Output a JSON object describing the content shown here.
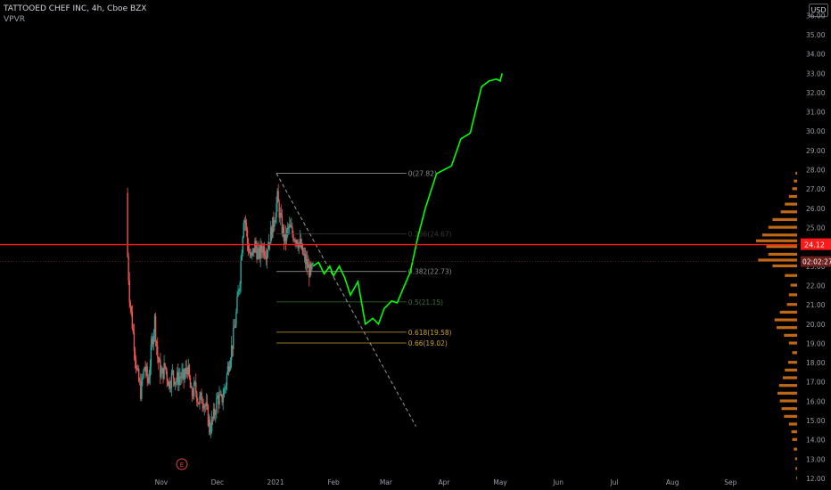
{
  "header": {
    "title": "TATTOOED CHEF INC, 4h, Cboe BZX",
    "indicator": "VPVR",
    "currency_button": "USD"
  },
  "colors": {
    "background": "#000000",
    "candle_up": "#26a69a",
    "candle_down": "#ef5350",
    "projection": "#00ff00",
    "price_line": "#ff1a1a",
    "volume_profile": "#e07b17",
    "fib_line": "#8c8c8c",
    "fib_618": "#c9a227",
    "fib_5": "#3c6e3c"
  },
  "chart_data": {
    "type": "candlestick",
    "symbol": "TATTOOED CHEF INC",
    "interval": "4h",
    "exchange": "Cboe BZX",
    "currency": "USD",
    "ylim": [
      11.4,
      36.8
    ],
    "y_ticks": [
      "12.00",
      "13.00",
      "14.00",
      "15.00",
      "16.00",
      "17.00",
      "18.00",
      "19.00",
      "20.00",
      "21.00",
      "22.00",
      "23.00",
      "24.00",
      "25.00",
      "26.00",
      "27.00",
      "28.00",
      "29.00",
      "30.00",
      "31.00",
      "32.00",
      "33.00",
      "34.00",
      "35.00",
      "36.00"
    ],
    "x_ticks": [
      {
        "label": "Nov",
        "day": -61
      },
      {
        "label": "Dec",
        "day": -31
      },
      {
        "label": "2021",
        "day": 0
      },
      {
        "label": "Feb",
        "day": 31
      },
      {
        "label": "Mar",
        "day": 59
      },
      {
        "label": "Apr",
        "day": 90
      },
      {
        "label": "May",
        "day": 120
      },
      {
        "label": "Jun",
        "day": 151
      },
      {
        "label": "Jul",
        "day": 181
      },
      {
        "label": "Aug",
        "day": 212
      },
      {
        "label": "Sep",
        "day": 243
      }
    ],
    "price_path": [
      [
        -79.5,
        26.8
      ],
      [
        -79,
        23.5
      ],
      [
        -78,
        21.5
      ],
      [
        -76,
        19.5
      ],
      [
        -74,
        17.5
      ],
      [
        -72,
        16.5
      ],
      [
        -70,
        17.8
      ],
      [
        -68,
        17
      ],
      [
        -66,
        19
      ],
      [
        -64.5,
        20.2
      ],
      [
        -63,
        18.3
      ],
      [
        -61,
        17.3
      ],
      [
        -59,
        17.8
      ],
      [
        -57,
        16.9
      ],
      [
        -55,
        17.4
      ],
      [
        -53,
        17.1
      ],
      [
        -51,
        17.3
      ],
      [
        -49,
        17.2
      ],
      [
        -47,
        17.8
      ],
      [
        -45,
        16.3
      ],
      [
        -43,
        16.7
      ],
      [
        -41,
        16
      ],
      [
        -39,
        16.2
      ],
      [
        -37,
        15.6
      ],
      [
        -35,
        14.6
      ],
      [
        -33,
        15.2
      ],
      [
        -31,
        16.2
      ],
      [
        -29,
        16
      ],
      [
        -27,
        16.7
      ],
      [
        -25,
        18
      ],
      [
        -23,
        19
      ],
      [
        -21,
        20.5
      ],
      [
        -19,
        22.5
      ],
      [
        -17,
        25.6
      ],
      [
        -16,
        25.3
      ],
      [
        -15,
        24.2
      ],
      [
        -13,
        23.3
      ],
      [
        -11,
        24.1
      ],
      [
        -9,
        23.5
      ],
      [
        -7,
        24
      ],
      [
        -5,
        23.8
      ],
      [
        -3,
        24.5
      ],
      [
        -1,
        25.3
      ],
      [
        1,
        26.5
      ],
      [
        3,
        25.2
      ],
      [
        5,
        24.3
      ],
      [
        7,
        25
      ],
      [
        9,
        24.7
      ],
      [
        11,
        24.5
      ],
      [
        13,
        24.1
      ],
      [
        15,
        23.5
      ],
      [
        17,
        23
      ],
      [
        19,
        22.6
      ],
      [
        20,
        22.9
      ]
    ],
    "current_price": "24.12",
    "countdown": "02:02:27",
    "fibonacci": {
      "anchor_start": {
        "day": 0.5,
        "price": 27.82
      },
      "anchor_end": {
        "day": 58,
        "price": 19.0
      },
      "levels": [
        {
          "ratio": "0",
          "price": 27.82,
          "label": "0(27.82)"
        },
        {
          "ratio": "0.236",
          "price": 24.67,
          "label": "0.236(24.67)"
        },
        {
          "ratio": "0.382",
          "price": 22.73,
          "label": "0.382(22.73)"
        },
        {
          "ratio": "0.5",
          "price": 21.15,
          "label": "0.5(21.15)"
        },
        {
          "ratio": "0.618",
          "price": 19.58,
          "label": "0.618(19.58)"
        },
        {
          "ratio": "0.66",
          "price": 19.02,
          "label": "0.66(19.02)"
        }
      ]
    },
    "trend_line": {
      "from": {
        "day": 0.5,
        "price": 27.82
      },
      "to": {
        "day": 75,
        "price": 14.7
      }
    },
    "projection_path": [
      [
        20,
        23.0
      ],
      [
        23,
        23.2
      ],
      [
        26,
        22.6
      ],
      [
        29,
        23.0
      ],
      [
        31,
        22.5
      ],
      [
        34,
        23.0
      ],
      [
        37,
        22.4
      ],
      [
        40,
        21.5
      ],
      [
        44,
        22.2
      ],
      [
        48,
        20.0
      ],
      [
        52,
        20.3
      ],
      [
        55,
        20.0
      ],
      [
        58,
        20.8
      ],
      [
        62,
        21.2
      ],
      [
        65,
        21.1
      ],
      [
        68,
        21.8
      ],
      [
        72,
        22.7
      ],
      [
        76,
        24.5
      ],
      [
        80,
        26.0
      ],
      [
        86,
        27.8
      ],
      [
        94,
        28.2
      ],
      [
        99,
        29.6
      ],
      [
        104,
        29.9
      ],
      [
        110,
        32.3
      ],
      [
        114,
        32.6
      ],
      [
        118,
        32.7
      ],
      [
        120,
        32.6
      ],
      [
        121,
        33.0
      ]
    ],
    "volume_profile": [
      [
        12.0,
        0.02
      ],
      [
        12.5,
        0.04
      ],
      [
        13.0,
        0.05
      ],
      [
        13.5,
        0.08
      ],
      [
        14.0,
        0.12
      ],
      [
        14.4,
        0.14
      ],
      [
        14.8,
        0.2
      ],
      [
        15.2,
        0.32
      ],
      [
        15.6,
        0.38
      ],
      [
        16.0,
        0.42
      ],
      [
        16.4,
        0.48
      ],
      [
        16.8,
        0.44
      ],
      [
        17.2,
        0.35
      ],
      [
        17.6,
        0.3
      ],
      [
        18.0,
        0.22
      ],
      [
        18.5,
        0.12
      ],
      [
        19.0,
        0.2
      ],
      [
        19.4,
        0.32
      ],
      [
        19.8,
        0.5
      ],
      [
        20.2,
        0.55
      ],
      [
        20.6,
        0.42
      ],
      [
        21.0,
        0.25
      ],
      [
        21.5,
        0.2
      ],
      [
        22.0,
        0.16
      ],
      [
        22.5,
        0.3
      ],
      [
        23.0,
        0.6
      ],
      [
        23.3,
        0.95
      ],
      [
        23.6,
        0.7
      ],
      [
        24.0,
        0.75
      ],
      [
        24.3,
        1.0
      ],
      [
        24.6,
        0.85
      ],
      [
        25.0,
        0.7
      ],
      [
        25.4,
        0.6
      ],
      [
        25.8,
        0.4
      ],
      [
        26.2,
        0.3
      ],
      [
        26.6,
        0.2
      ],
      [
        27.0,
        0.12
      ],
      [
        27.4,
        0.08
      ],
      [
        27.8,
        0.04
      ]
    ],
    "earnings_marker": {
      "label": "E",
      "day": -50
    }
  }
}
